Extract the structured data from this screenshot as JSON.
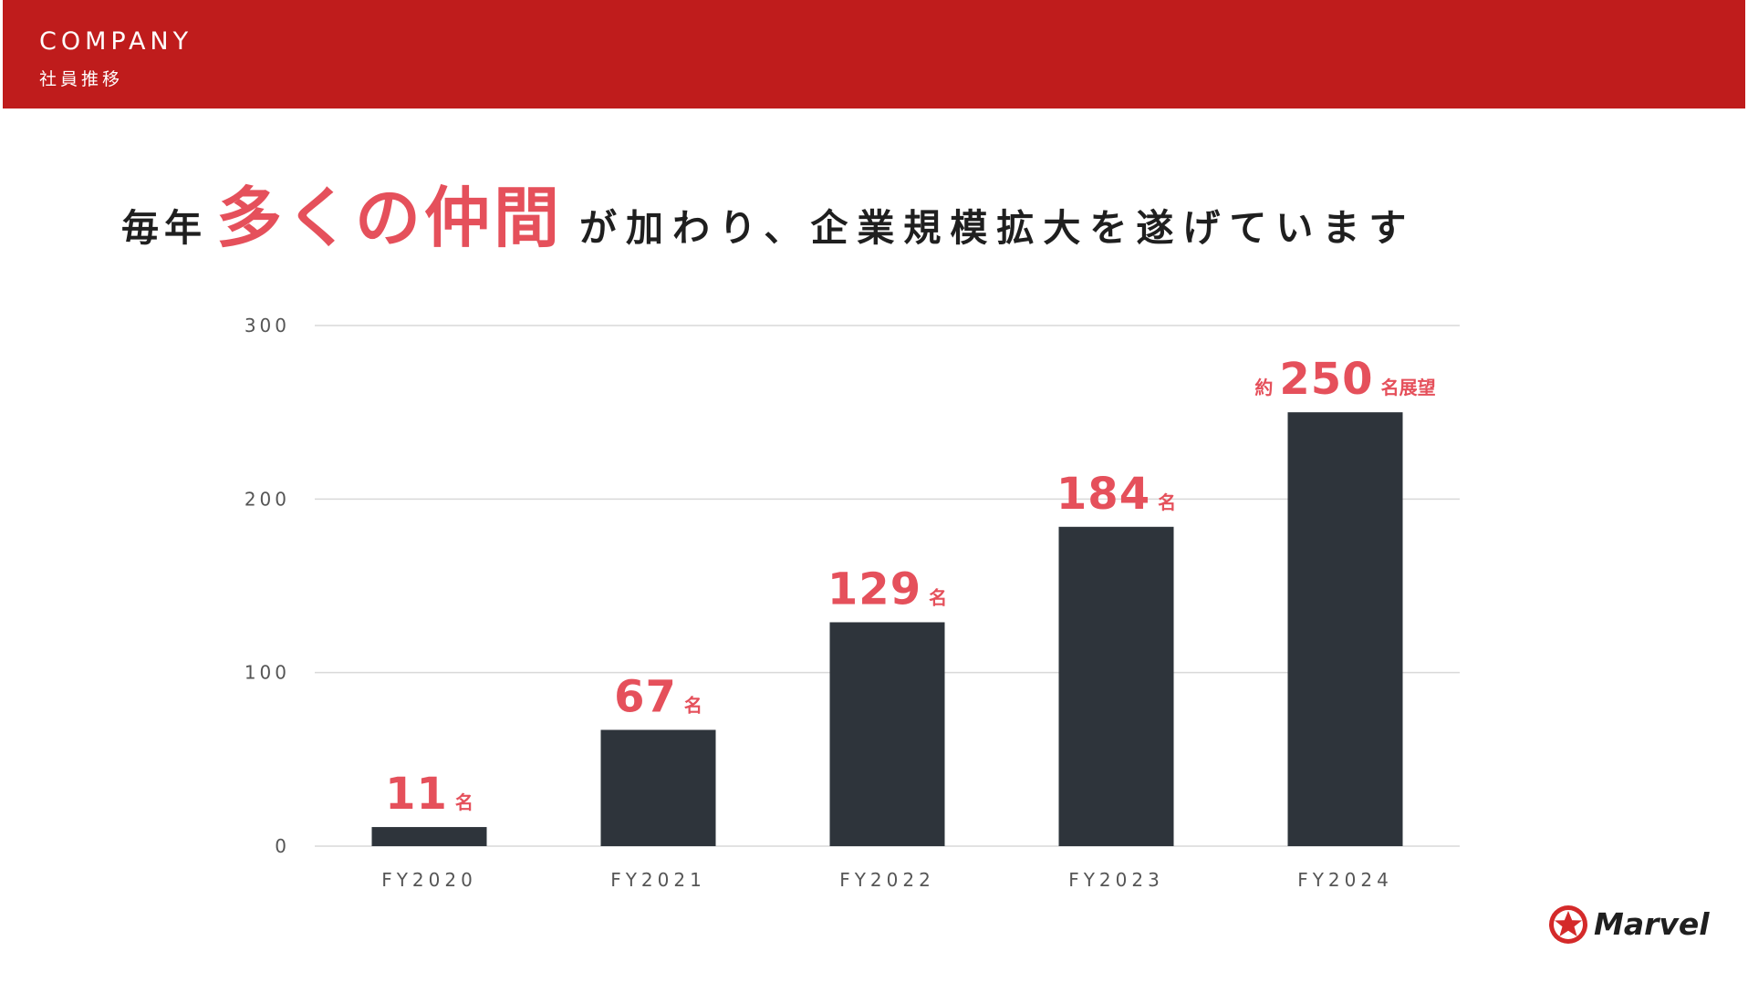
{
  "header": {
    "title": "COMPANY",
    "subtitle": "社員推移"
  },
  "headline": {
    "prefix": "毎年",
    "emphasis": "多くの仲間",
    "suffix": "が加わり、企業規模拡大を遂げています"
  },
  "colors": {
    "header_bg": "#bf1c1c",
    "accent": "#e5505b",
    "bar": "#2e343b",
    "grid": "#d9d9d9",
    "axis_text": "#555555"
  },
  "chart_data": {
    "type": "bar",
    "categories": [
      "FY2020",
      "FY2021",
      "FY2022",
      "FY2023",
      "FY2024"
    ],
    "values": [
      11,
      67,
      129,
      184,
      250
    ],
    "labels": [
      {
        "prefix": "",
        "value": "11",
        "unit": "名"
      },
      {
        "prefix": "",
        "value": "67",
        "unit": "名"
      },
      {
        "prefix": "",
        "value": "129",
        "unit": "名"
      },
      {
        "prefix": "",
        "value": "184",
        "unit": "名"
      },
      {
        "prefix": "約",
        "value": "250",
        "unit": "名展望"
      }
    ],
    "yticks": [
      0,
      100,
      200,
      300
    ],
    "ylim": [
      0,
      300
    ],
    "grid": true,
    "title": "",
    "xlabel": "",
    "ylabel": ""
  },
  "logo": {
    "text": "Marvel",
    "icon": "star-circle-icon"
  }
}
